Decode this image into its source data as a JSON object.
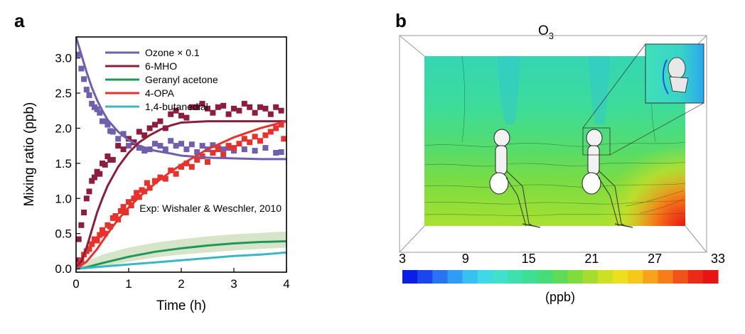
{
  "panel_a": {
    "label": "a",
    "annotation": "Exp: Wishaler & Weschler, 2010",
    "chart_data": {
      "type": "line",
      "xlabel": "Time (h)",
      "ylabel": "Mixing ratio (ppb)",
      "xlim": [
        0,
        4
      ],
      "ylim": [
        -0.05,
        3.3
      ],
      "xticks": [
        0,
        1,
        2,
        3,
        4
      ],
      "xtick_labels": [
        "0",
        "1",
        "2",
        "3",
        "4"
      ],
      "yticks": [
        0.0,
        0.5,
        1.0,
        1.5,
        2.0,
        2.5,
        3.0
      ],
      "ytick_labels": [
        "0.0",
        "0.5",
        "1.0",
        "1.5",
        "2.0",
        "2.5",
        "3.0"
      ],
      "legend_position": "top-left",
      "grid": false,
      "series": [
        {
          "name": "Ozone × 0.1",
          "color": "#6f5fad",
          "model": {
            "x": [
              0,
              0.1,
              0.2,
              0.3,
              0.4,
              0.5,
              0.6,
              0.8,
              1.0,
              1.2,
              1.5,
              1.8,
              2.0,
              2.5,
              3.0,
              3.5,
              4.0
            ],
            "y": [
              3.3,
              3.05,
              2.8,
              2.58,
              2.4,
              2.25,
              2.12,
              1.95,
              1.83,
              1.75,
              1.68,
              1.64,
              1.61,
              1.58,
              1.57,
              1.56,
              1.56
            ]
          },
          "observed": {
            "x": [
              0.05,
              0.1,
              0.15,
              0.2,
              0.25,
              0.3,
              0.35,
              0.4,
              0.45,
              0.5,
              0.55,
              0.6,
              0.65,
              0.7,
              0.8,
              0.9,
              1.0,
              1.1,
              1.2,
              1.3,
              1.4,
              1.5,
              1.6,
              1.7,
              1.8,
              1.9,
              2.0,
              2.1,
              2.2,
              2.3,
              2.4,
              2.5,
              2.6,
              2.7,
              2.8,
              2.9,
              3.0,
              3.2,
              3.4,
              3.6,
              3.8,
              3.9
            ],
            "y": [
              3.05,
              2.85,
              2.7,
              2.55,
              2.47,
              2.35,
              2.3,
              2.27,
              2.22,
              2.1,
              2.1,
              2.05,
              1.96,
              1.95,
              1.85,
              1.92,
              1.75,
              1.8,
              1.72,
              1.68,
              1.7,
              1.78,
              1.75,
              1.7,
              1.82,
              1.75,
              1.78,
              1.7,
              1.77,
              1.66,
              1.75,
              1.7,
              1.76,
              1.72,
              1.7,
              1.72,
              1.68,
              1.7,
              1.68,
              1.72,
              1.65,
              1.66
            ]
          }
        },
        {
          "name": "6-MHO",
          "color": "#8b1e3f",
          "model": {
            "x": [
              0,
              0.1,
              0.2,
              0.3,
              0.4,
              0.5,
              0.6,
              0.8,
              1.0,
              1.2,
              1.4,
              1.6,
              1.8,
              2.0,
              2.5,
              3.0,
              3.5,
              4.0
            ],
            "y": [
              0.02,
              0.1,
              0.3,
              0.55,
              0.8,
              1.0,
              1.18,
              1.45,
              1.65,
              1.8,
              1.9,
              1.98,
              2.04,
              2.08,
              2.1,
              2.1,
              2.1,
              2.1
            ]
          },
          "observed": {
            "x": [
              0.02,
              0.05,
              0.1,
              0.15,
              0.2,
              0.25,
              0.3,
              0.35,
              0.4,
              0.45,
              0.5,
              0.55,
              0.6,
              0.65,
              0.7,
              0.8,
              0.9,
              1.0,
              1.1,
              1.2,
              1.3,
              1.4,
              1.5,
              1.6,
              1.7,
              1.8,
              1.9,
              2.0,
              2.1,
              2.2,
              2.3,
              2.4,
              2.5,
              2.6,
              2.7,
              2.8,
              2.9,
              3.0,
              3.1,
              3.2,
              3.3,
              3.4,
              3.5,
              3.6,
              3.7,
              3.8,
              3.9
            ],
            "y": [
              0.12,
              0.42,
              0.62,
              0.8,
              1.0,
              1.1,
              1.25,
              1.3,
              1.38,
              1.35,
              1.5,
              1.48,
              1.6,
              1.55,
              1.55,
              1.75,
              1.7,
              1.85,
              1.8,
              1.95,
              1.9,
              2.0,
              2.05,
              2.1,
              2.0,
              2.2,
              2.25,
              2.18,
              2.15,
              2.3,
              2.3,
              2.35,
              2.28,
              2.22,
              2.3,
              2.32,
              2.2,
              2.28,
              2.25,
              2.35,
              2.3,
              2.22,
              2.3,
              2.28,
              2.2,
              2.3,
              2.25
            ]
          }
        },
        {
          "name": "Geranyl acetone",
          "color": "#22965a",
          "band_color": "#c8dcb4",
          "model": {
            "x": [
              0,
              0.2,
              0.5,
              1.0,
              1.5,
              2.0,
              2.5,
              3.0,
              3.5,
              4.0
            ],
            "y": [
              0.0,
              0.02,
              0.08,
              0.17,
              0.24,
              0.29,
              0.33,
              0.36,
              0.38,
              0.39
            ]
          },
          "band_upper": [
            0.02,
            0.1,
            0.2,
            0.3,
            0.37,
            0.42,
            0.46,
            0.49,
            0.51,
            0.53
          ],
          "band_lower": [
            0.0,
            0.0,
            0.03,
            0.1,
            0.16,
            0.2,
            0.23,
            0.26,
            0.28,
            0.3
          ]
        },
        {
          "name": "4-OPA",
          "color": "#e4322d",
          "model": {
            "x": [
              0,
              0.2,
              0.4,
              0.6,
              0.8,
              1.0,
              1.2,
              1.4,
              1.6,
              1.8,
              2.0,
              2.2,
              2.5,
              3.0,
              3.5,
              4.0
            ],
            "y": [
              0.0,
              0.1,
              0.28,
              0.5,
              0.7,
              0.87,
              1.02,
              1.15,
              1.27,
              1.38,
              1.48,
              1.57,
              1.7,
              1.87,
              2.0,
              2.1
            ]
          },
          "observed": {
            "x": [
              0.05,
              0.1,
              0.15,
              0.2,
              0.25,
              0.3,
              0.35,
              0.4,
              0.45,
              0.5,
              0.55,
              0.6,
              0.65,
              0.7,
              0.75,
              0.8,
              0.85,
              0.9,
              0.95,
              1.0,
              1.05,
              1.1,
              1.15,
              1.2,
              1.25,
              1.3,
              1.35,
              1.4,
              1.5,
              1.6,
              1.7,
              1.8,
              1.9,
              2.0,
              2.1,
              2.2,
              2.3,
              2.4,
              2.5,
              2.6,
              2.7,
              2.8,
              2.9,
              3.0,
              3.1,
              3.2,
              3.3,
              3.4,
              3.5,
              3.6,
              3.7,
              3.8,
              3.9,
              3.95
            ],
            "y": [
              0.05,
              0.12,
              0.2,
              0.25,
              0.28,
              0.35,
              0.42,
              0.4,
              0.48,
              0.55,
              0.5,
              0.62,
              0.6,
              0.72,
              0.75,
              0.7,
              0.82,
              0.88,
              0.8,
              0.95,
              0.9,
              1.0,
              1.08,
              1.02,
              1.12,
              1.1,
              1.22,
              1.15,
              1.25,
              1.3,
              1.28,
              1.4,
              1.35,
              1.45,
              1.5,
              1.45,
              1.55,
              1.6,
              1.52,
              1.65,
              1.7,
              1.62,
              1.75,
              1.72,
              1.78,
              1.85,
              1.8,
              1.88,
              1.82,
              1.9,
              1.95,
              2.0,
              2.05,
              1.85
            ]
          }
        },
        {
          "name": "1,4-butanedial",
          "color": "#3ab7c2",
          "model": {
            "x": [
              0,
              0.2,
              0.5,
              1.0,
              1.5,
              2.0,
              2.5,
              3.0,
              3.5,
              4.0
            ],
            "y": [
              0.0,
              0.01,
              0.03,
              0.06,
              0.09,
              0.12,
              0.15,
              0.18,
              0.2,
              0.23
            ]
          }
        }
      ]
    }
  },
  "panel_b": {
    "label": "b",
    "title_main": "O",
    "title_sub": "3",
    "colorbar": {
      "tick_labels": [
        "3",
        "9",
        "15",
        "21",
        "27",
        "33"
      ],
      "range": [
        3,
        33
      ],
      "unit": "(ppb)",
      "colors": [
        "#0a1ee6",
        "#1a46ee",
        "#2a74f2",
        "#2f9cf5",
        "#37c0f2",
        "#3ed8e6",
        "#3fe0cc",
        "#3ee0b0",
        "#3ede95",
        "#46dc78",
        "#5fdc56",
        "#7fdc3c",
        "#a6dc2e",
        "#cde024",
        "#ece01e",
        "#f6c81c",
        "#f8a41a",
        "#f67e18",
        "#f05418",
        "#ec2a18",
        "#e81414"
      ]
    }
  }
}
